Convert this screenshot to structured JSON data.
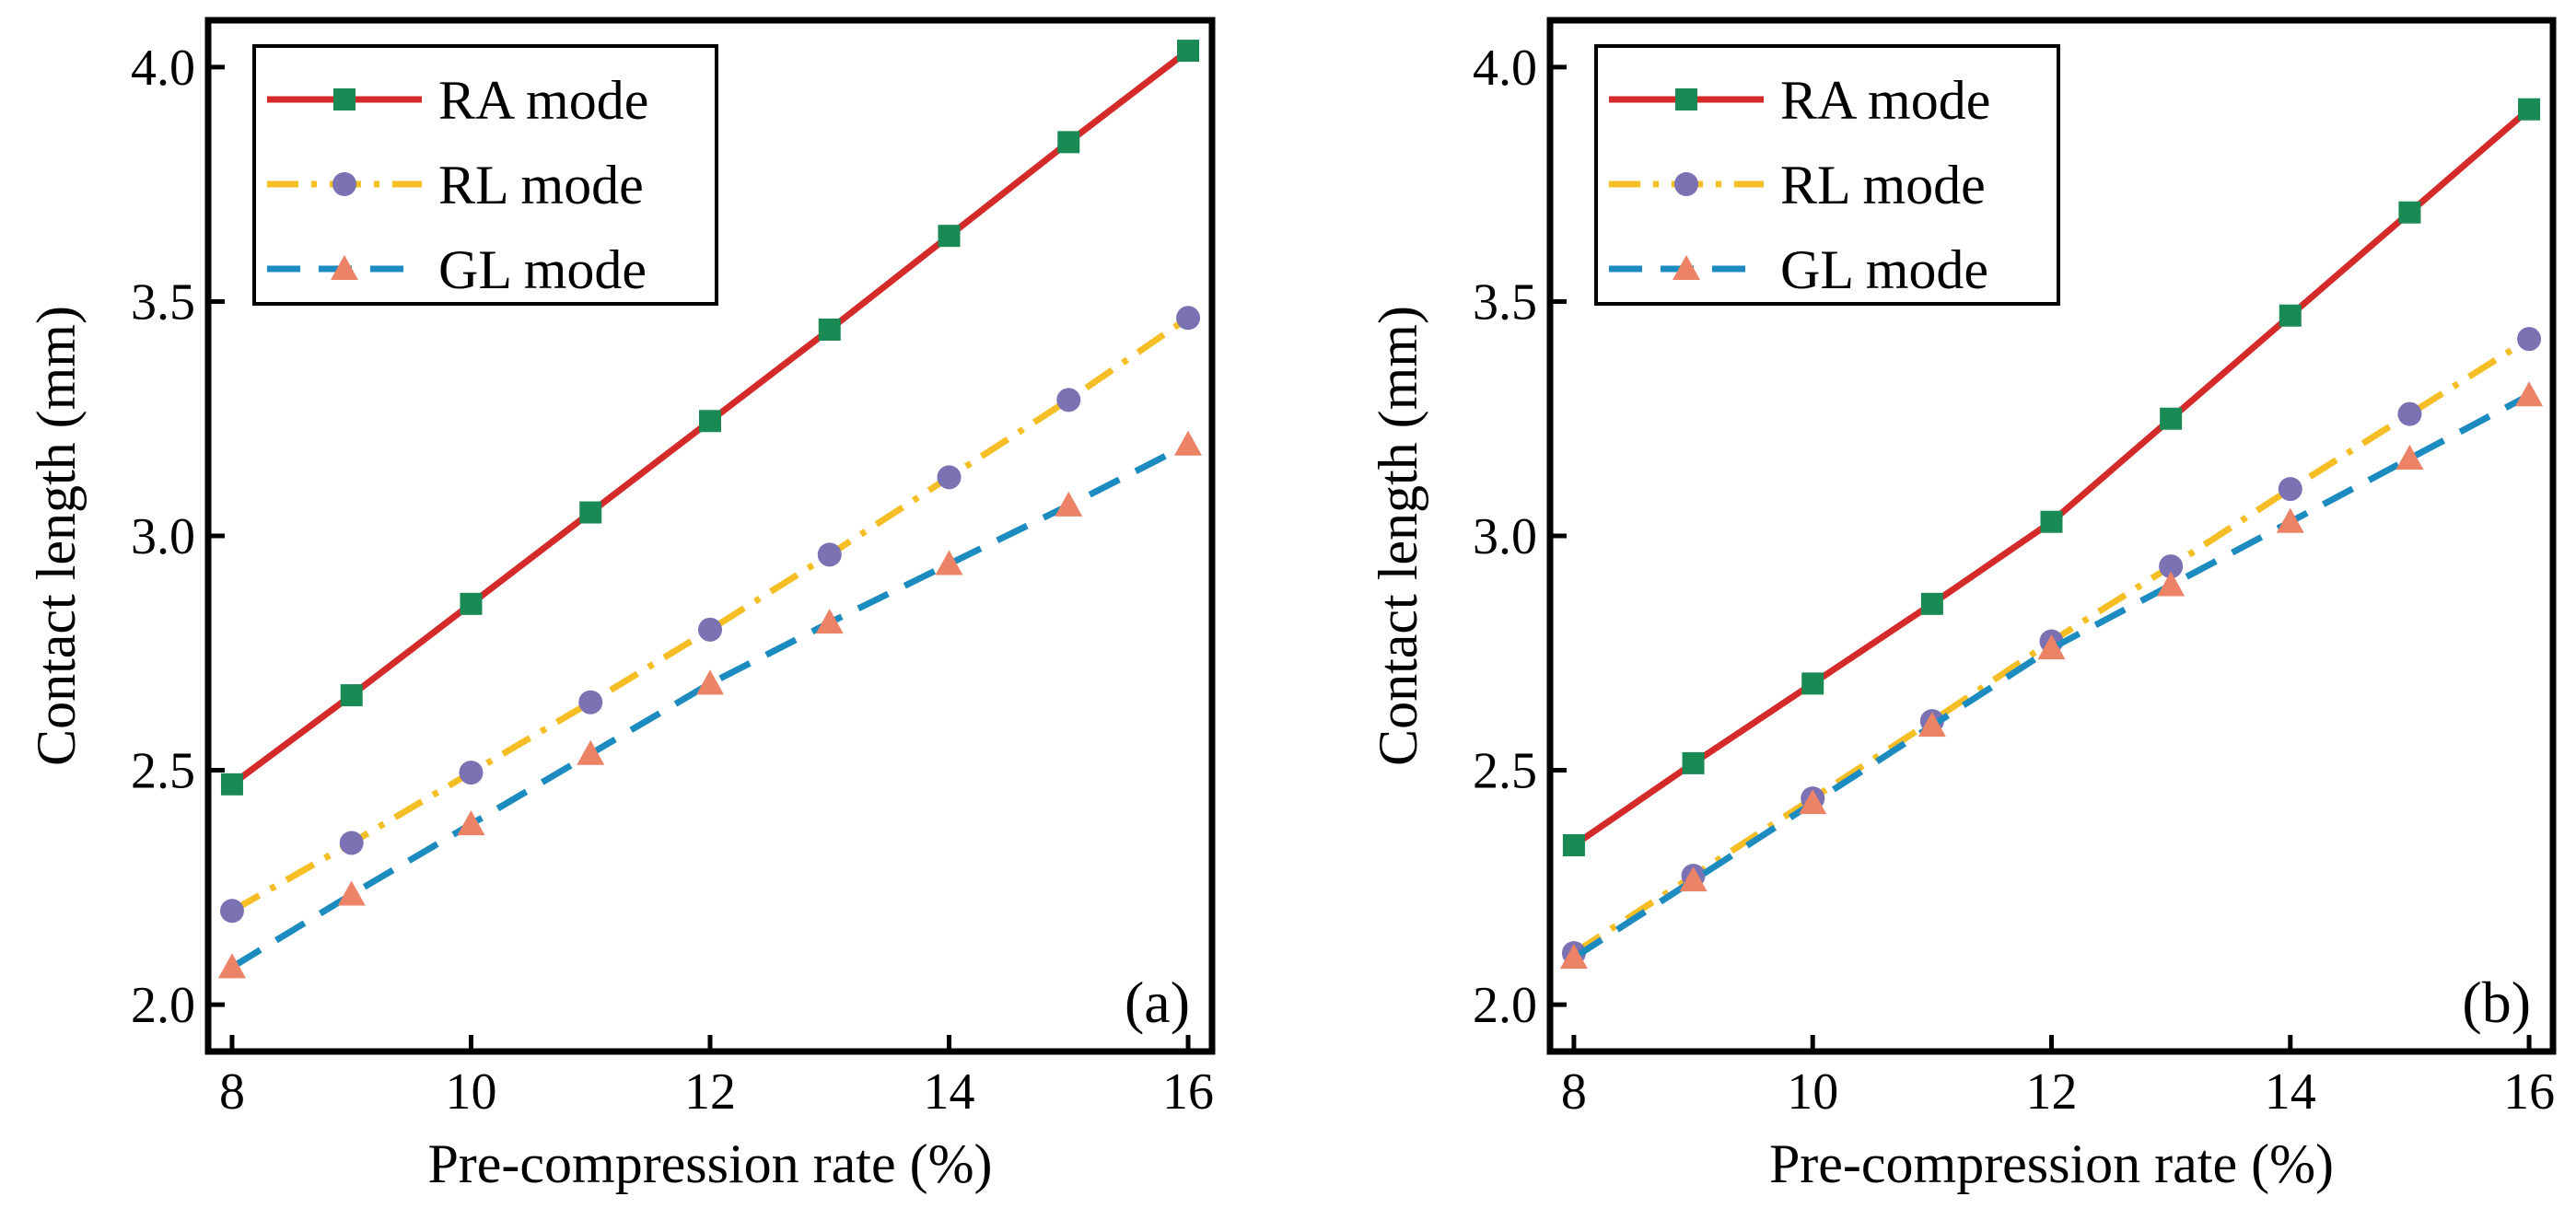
{
  "chart_data": [
    {
      "type": "line",
      "panel_label": "(a)",
      "xlabel": "Pre-compression rate (%)",
      "ylabel": "Contact length (mm)",
      "xlim": [
        7.8,
        16.2
      ],
      "ylim": [
        1.9,
        4.1
      ],
      "xticks": [
        8,
        10,
        12,
        14,
        16
      ],
      "yticks": [
        2.0,
        2.5,
        3.0,
        3.5,
        4.0
      ],
      "ytick_labels": [
        "2.0",
        "2.5",
        "3.0",
        "3.5",
        "4.0"
      ],
      "legend_position": "top-left",
      "x": [
        8,
        9,
        10,
        11,
        12,
        13,
        14,
        15,
        16
      ],
      "series": [
        {
          "name": "RA mode",
          "values": [
            2.47,
            2.66,
            2.855,
            3.05,
            3.245,
            3.44,
            3.64,
            3.84,
            4.035
          ]
        },
        {
          "name": "RL mode",
          "values": [
            2.2,
            2.345,
            2.495,
            2.645,
            2.8,
            2.96,
            3.125,
            3.29,
            3.465
          ]
        },
        {
          "name": "GL mode",
          "values": [
            2.08,
            2.235,
            2.385,
            2.535,
            2.685,
            2.815,
            2.94,
            3.065,
            3.195
          ]
        }
      ]
    },
    {
      "type": "line",
      "panel_label": "(b)",
      "xlabel": "Pre-compression rate (%)",
      "ylabel": "Contact length (mm)",
      "xlim": [
        7.8,
        16.2
      ],
      "ylim": [
        1.9,
        4.1
      ],
      "xticks": [
        8,
        10,
        12,
        14,
        16
      ],
      "yticks": [
        2.0,
        2.5,
        3.0,
        3.5,
        4.0
      ],
      "ytick_labels": [
        "2.0",
        "2.5",
        "3.0",
        "3.5",
        "4.0"
      ],
      "legend_position": "top-left",
      "x": [
        8,
        9,
        10,
        11,
        12,
        13,
        14,
        15,
        16
      ],
      "series": [
        {
          "name": "RA mode",
          "values": [
            2.34,
            2.515,
            2.685,
            2.855,
            3.03,
            3.25,
            3.47,
            3.69,
            3.91
          ]
        },
        {
          "name": "RL mode",
          "values": [
            2.11,
            2.275,
            2.44,
            2.605,
            2.775,
            2.935,
            3.1,
            3.26,
            3.42
          ]
        },
        {
          "name": "GL mode",
          "values": [
            2.1,
            2.265,
            2.43,
            2.595,
            2.76,
            2.895,
            3.03,
            3.165,
            3.3
          ]
        }
      ]
    }
  ],
  "style": {
    "RA mode": {
      "color": "#d42a2a",
      "marker_color": "#1a8a55",
      "marker": "square",
      "dash": ""
    },
    "RL mode": {
      "color": "#f5be25",
      "marker_color": "#7a72b3",
      "marker": "circle",
      "dash": "34 14 6 14"
    },
    "GL mode": {
      "color": "#1c8bbf",
      "marker_color": "#ec8266",
      "marker": "triangle",
      "dash": "36 20"
    }
  }
}
